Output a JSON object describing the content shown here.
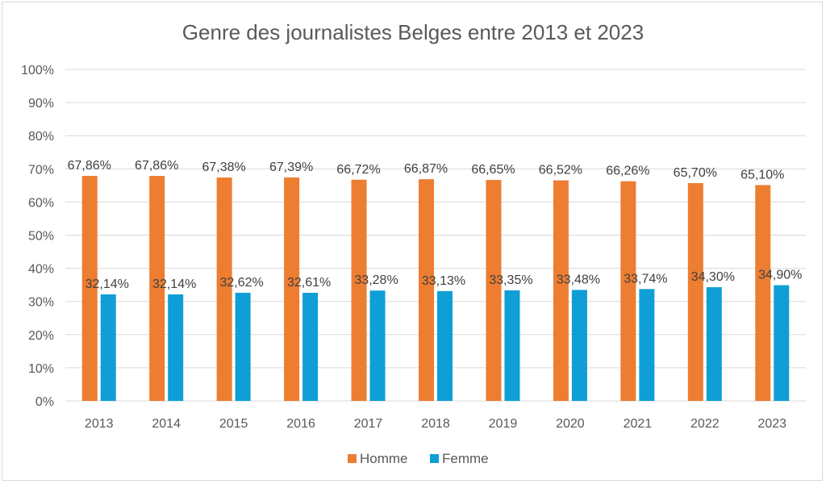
{
  "chart_data": {
    "type": "bar",
    "title": "Genre des journalistes Belges entre 2013 et 2023",
    "categories": [
      "2013",
      "2014",
      "2015",
      "2016",
      "2017",
      "2018",
      "2019",
      "2020",
      "2021",
      "2022",
      "2023"
    ],
    "series": [
      {
        "name": "Homme",
        "color": "#ED7D31",
        "values": [
          67.86,
          67.86,
          67.38,
          67.39,
          66.72,
          66.87,
          66.65,
          66.52,
          66.26,
          65.7,
          65.1
        ],
        "labels": [
          "67,86%",
          "67,86%",
          "67,38%",
          "67,39%",
          "66,72%",
          "66,87%",
          "66,65%",
          "66,52%",
          "66,26%",
          "65,70%",
          "65,10%"
        ]
      },
      {
        "name": "Femme",
        "color": "#0F9ED5",
        "values": [
          32.14,
          32.14,
          32.62,
          32.61,
          33.28,
          33.13,
          33.35,
          33.48,
          33.74,
          34.3,
          34.9
        ],
        "labels": [
          "32,14%",
          "32,14%",
          "32,62%",
          "32,61%",
          "33,28%",
          "33,13%",
          "33,35%",
          "33,48%",
          "33,74%",
          "34,30%",
          "34,90%"
        ]
      }
    ],
    "ylim": [
      0,
      100
    ],
    "yticks": [
      0,
      10,
      20,
      30,
      40,
      50,
      60,
      70,
      80,
      90,
      100
    ],
    "ytick_labels": [
      "0%",
      "10%",
      "20%",
      "30%",
      "40%",
      "50%",
      "60%",
      "70%",
      "80%",
      "90%",
      "100%"
    ],
    "grid": true,
    "legend_position": "bottom"
  }
}
